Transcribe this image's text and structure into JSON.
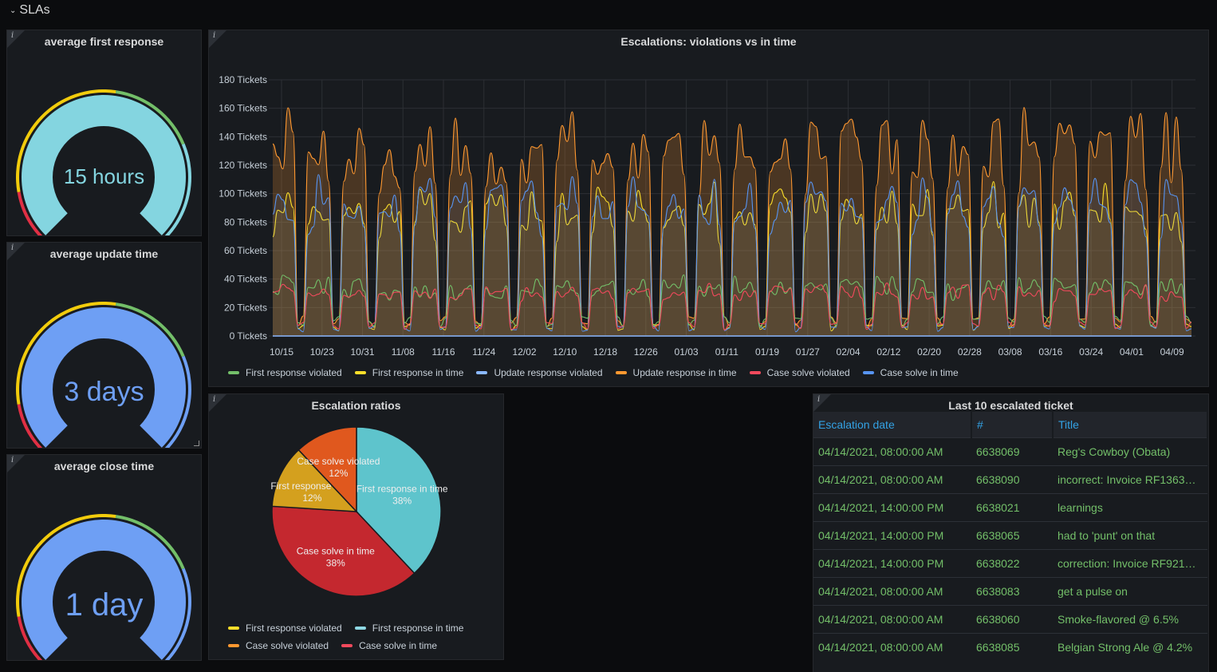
{
  "row": {
    "title": "SLAs"
  },
  "colors": {
    "green": "#73bf69",
    "yellow": "#f2cc0c",
    "red": "#e02f44",
    "teal": "#8ed8e4",
    "blue": "#6e9ff4",
    "orange": "#ff9830",
    "case_red": "#f2495c",
    "case_blue": "#5794f2"
  },
  "gauges": [
    {
      "title": "average first response",
      "value": "15 hours",
      "fill_fraction": 1.0,
      "color": "#84d5e0"
    },
    {
      "title": "average update time",
      "value": "3 days",
      "fill_fraction": 1.0,
      "color": "#6e9ff4"
    },
    {
      "title": "average close time",
      "value": "1 day",
      "fill_fraction": 1.0,
      "color": "#6e9ff4"
    }
  ],
  "timeseries": {
    "title": "Escalations: violations vs in time",
    "y_ticks": [
      "180 Tickets",
      "160 Tickets",
      "140 Tickets",
      "120 Tickets",
      "100 Tickets",
      "80 Tickets",
      "60 Tickets",
      "40 Tickets",
      "20 Tickets",
      "0 Tickets"
    ],
    "x_ticks": [
      "10/15",
      "10/23",
      "10/31",
      "11/08",
      "11/16",
      "11/24",
      "12/02",
      "12/10",
      "12/18",
      "12/26",
      "01/03",
      "01/11",
      "01/19",
      "01/27",
      "02/04",
      "02/12",
      "02/20",
      "02/28",
      "03/08",
      "03/16",
      "03/24",
      "04/01",
      "04/09"
    ],
    "legend": [
      {
        "name": "First response violated",
        "color": "#73bf69"
      },
      {
        "name": "First response in time",
        "color": "#fade2a"
      },
      {
        "name": "Update response violated",
        "color": "#8ab8ff"
      },
      {
        "name": "Update response in time",
        "color": "#ff9830"
      },
      {
        "name": "Case solve violated",
        "color": "#f2495c"
      },
      {
        "name": "Case solve in time",
        "color": "#5794f2"
      }
    ]
  },
  "pie": {
    "title": "Escalation ratios",
    "slices": [
      {
        "name": "First response in time",
        "label": "First response in time",
        "pct": "38%",
        "value": 38,
        "color": "#5ec4cc"
      },
      {
        "name": "Case solve in time",
        "label": "Case solve in time",
        "pct": "38%",
        "value": 38,
        "color": "#c4282f"
      },
      {
        "name": "First response violated",
        "label": "First response viola",
        "pct": "12%",
        "value": 12,
        "color": "#d4a01e"
      },
      {
        "name": "Case solve violated",
        "label": "Case solve violated",
        "pct": "12%",
        "value": 12,
        "color": "#e0581e"
      }
    ],
    "legend": [
      {
        "name": "First response violated",
        "color": "#fade2a"
      },
      {
        "name": "First response in time",
        "color": "#8ed8e4"
      },
      {
        "name": "Case solve violated",
        "color": "#ff9830"
      },
      {
        "name": "Case solve in time",
        "color": "#f2495c"
      }
    ]
  },
  "tickets": {
    "title": "Last 10 escalated ticket",
    "columns": [
      "Escalation date",
      "#",
      "Title"
    ],
    "rows": [
      [
        "04/14/2021, 08:00:00 AM",
        "6638069",
        "Reg's Cowboy (Obata)"
      ],
      [
        "04/14/2021, 08:00:00 AM",
        "6638090",
        "incorrect: Invoice RF1363…"
      ],
      [
        "04/14/2021, 14:00:00 PM",
        "6638021",
        "learnings"
      ],
      [
        "04/14/2021, 14:00:00 PM",
        "6638065",
        "had to 'punt' on that"
      ],
      [
        "04/14/2021, 14:00:00 PM",
        "6638022",
        "correction: Invoice RF921…"
      ],
      [
        "04/14/2021, 08:00:00 AM",
        "6638083",
        "get a pulse on"
      ],
      [
        "04/14/2021, 08:00:00 AM",
        "6638060",
        "Smoke-flavored @ 6.5%"
      ],
      [
        "04/14/2021, 08:00:00 AM",
        "6638085",
        "Belgian Strong Ale @ 4.2%"
      ]
    ]
  }
}
